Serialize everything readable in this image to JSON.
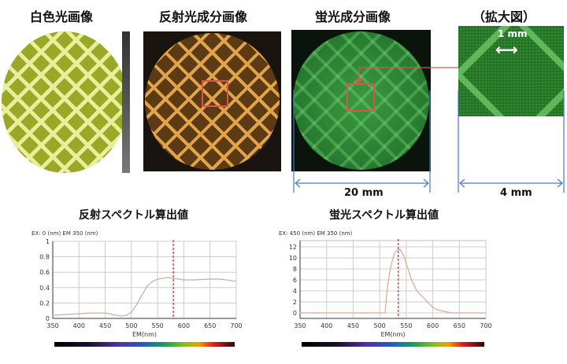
{
  "panels": {
    "white_light": "白色光画像",
    "reflect": "反射光成分画像",
    "fluor": "蛍光成分画像",
    "zoom": "（拡大図）",
    "zoom_scale": "1 mm",
    "dim_20": "20 mm",
    "dim_4": "4 mm"
  },
  "colors": {
    "marker": "#c0392b",
    "curve": "#d4a89a",
    "box": "#d9534f",
    "dim": "#4a7ab5"
  },
  "chart_data": [
    {
      "type": "line",
      "title": "反射スペクトル算出値",
      "subtitle": "EX: 0 (nm) EM 350 (nm)",
      "xlabel": "EM(nm)",
      "ylabel": "",
      "xlim": [
        350,
        700
      ],
      "ylim": [
        0,
        1
      ],
      "xticks": [
        350,
        400,
        450,
        500,
        550,
        600,
        650,
        700
      ],
      "yticks": [
        0,
        0.2,
        0.4,
        0.6,
        0.8,
        1
      ],
      "ytick_labels": [
        "0",
        "0.2",
        "0.4",
        "0.6",
        "0.8",
        "1"
      ],
      "marker_x": 580,
      "x": [
        350,
        370,
        400,
        420,
        450,
        465,
        480,
        490,
        500,
        510,
        520,
        530,
        540,
        550,
        570,
        580,
        600,
        620,
        650,
        670,
        700
      ],
      "y": [
        0.04,
        0.05,
        0.06,
        0.07,
        0.07,
        0.05,
        0.03,
        0.04,
        0.08,
        0.18,
        0.3,
        0.42,
        0.48,
        0.51,
        0.53,
        0.52,
        0.5,
        0.5,
        0.51,
        0.51,
        0.48
      ],
      "grid": true
    },
    {
      "type": "line",
      "title": "蛍光スペクトル算出値",
      "subtitle": "EX: 450 (nm) EM 350 (nm)",
      "xlabel": "EM(nm)",
      "ylabel": "",
      "xlim": [
        350,
        700
      ],
      "ylim": [
        -1,
        13
      ],
      "xticks": [
        350,
        400,
        450,
        500,
        550,
        600,
        650,
        700
      ],
      "yticks": [
        0,
        2,
        4,
        6,
        8,
        10,
        12
      ],
      "ytick_labels": [
        "0",
        "2",
        "4",
        "6",
        "8",
        "10",
        "12"
      ],
      "marker_x": 535,
      "x": [
        350,
        510,
        515,
        520,
        525,
        530,
        538,
        545,
        550,
        560,
        570,
        580,
        590,
        600,
        610,
        635,
        700
      ],
      "y": [
        0,
        0,
        5,
        8,
        10,
        11.2,
        11.6,
        10.5,
        9,
        6,
        4,
        3,
        2,
        1,
        0.5,
        0,
        0
      ],
      "grid": true
    }
  ]
}
